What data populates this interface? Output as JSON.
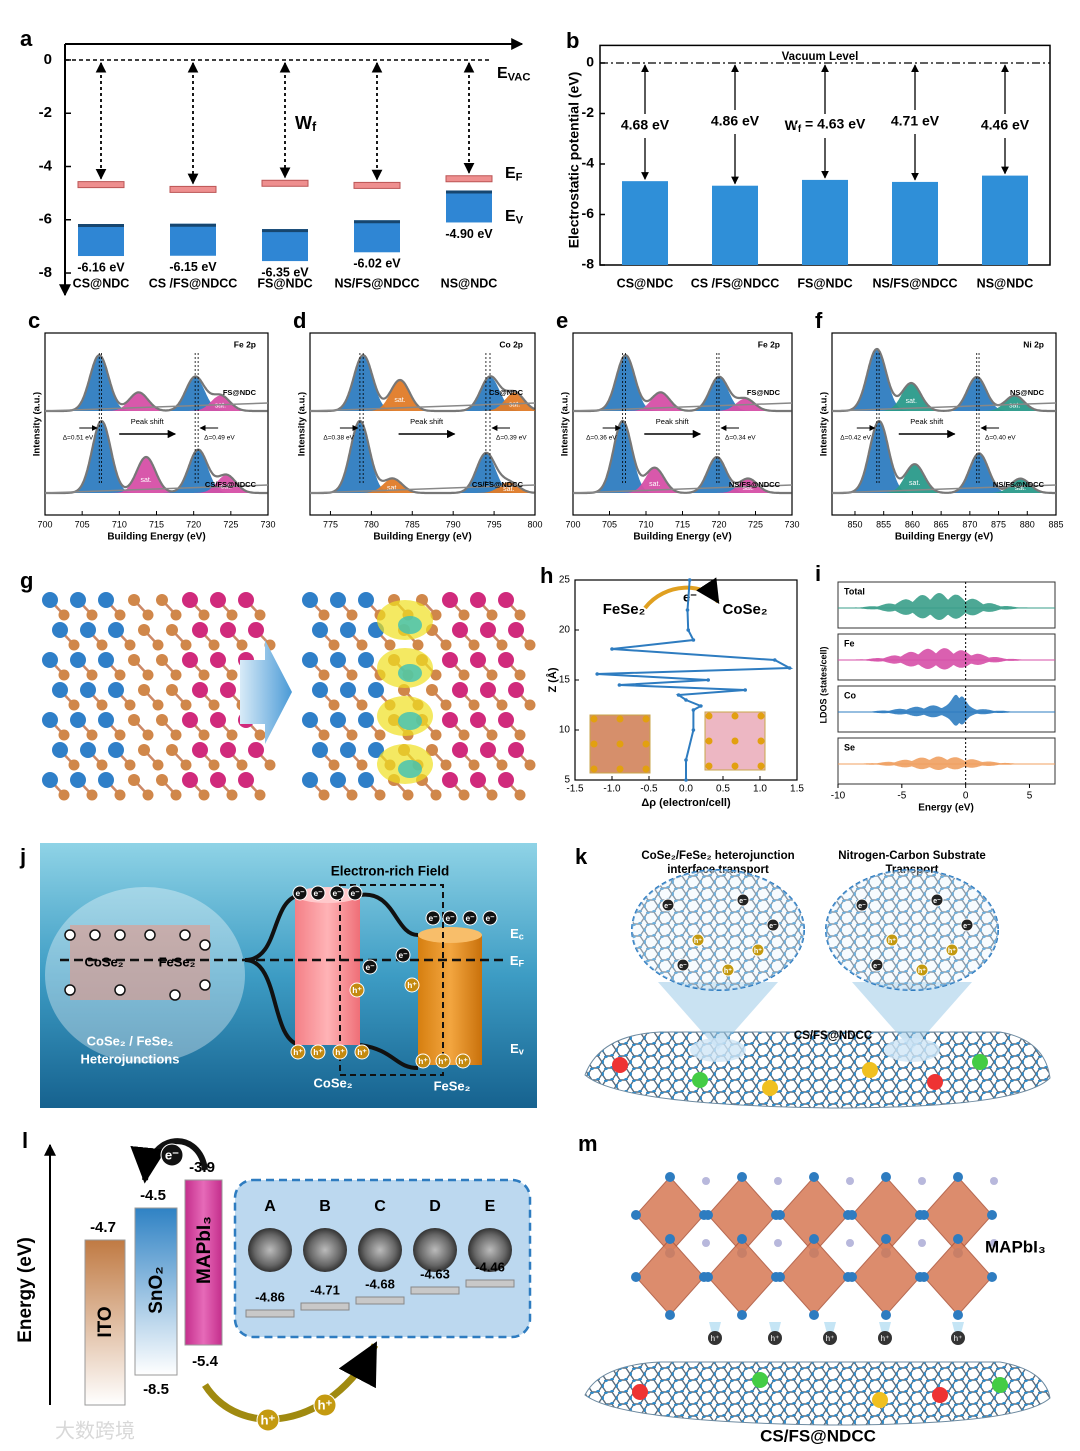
{
  "chart_data": [
    {
      "type": "energy-level",
      "label": "a",
      "categories": [
        "CS@NDC",
        "CS /FS@NDCC",
        "FS@NDC",
        "NS/FS@NDCC",
        "NS@NDC"
      ],
      "fermi": [
        -4.68,
        -4.86,
        -4.63,
        -4.71,
        -4.46
      ],
      "fermi_color": "#ee8f8f",
      "valence": [
        -6.16,
        -6.15,
        -6.35,
        -6.02,
        -4.9
      ],
      "value_labels": [
        "-6.16 eV",
        "-6.15 eV",
        "-6.35 eV",
        "-6.02 eV",
        "-4.90 eV"
      ],
      "valence_color": "#2f86d4",
      "ylim": [
        -8.6,
        0.6
      ],
      "yticks": [
        0,
        -2,
        -4,
        -6,
        -8
      ],
      "vacuum_label": [
        "E",
        {
          "sub": "VAC"
        }
      ],
      "wf_label": [
        "W",
        {
          "sub": "f"
        }
      ],
      "ef_label": [
        "E",
        {
          "sub": "F"
        }
      ],
      "ev_label": [
        "E",
        {
          "sub": "V"
        }
      ]
    },
    {
      "type": "bar",
      "label": "b",
      "title": "Vacuum Level",
      "ylabel": "Electrostatic potential (eV)",
      "categories": [
        "CS@NDC",
        "CS /FS@NDCC",
        "FS@NDC",
        "NS/FS@NDCC",
        "NS@NDC"
      ],
      "values": [
        -4.68,
        -4.86,
        -4.63,
        -4.71,
        -4.46
      ],
      "value_labels": [
        "4.68 eV",
        "4.86 eV",
        [
          "W",
          {
            "sub": "f"
          },
          " = 4.63 eV"
        ],
        "4.71 eV",
        "4.46 eV"
      ],
      "color": "#2f8fd8",
      "ylim": [
        -8,
        0.3
      ],
      "yticks": [
        0,
        -2,
        -4,
        -6,
        -8
      ]
    },
    {
      "type": "xps",
      "label": "c",
      "element": "Fe 2p",
      "xlabel": "Building Energy (eV)",
      "ylabel": "Intensity (a.u.)",
      "xlim": [
        700,
        730
      ],
      "xticks": [
        700,
        705,
        710,
        715,
        720,
        725,
        730
      ],
      "spectra": [
        {
          "name": "FS@NDC",
          "peaks": [
            {
              "x": 707.3,
              "h": 0.9,
              "color": "#2e7cc0"
            },
            {
              "x": 712.6,
              "h": 0.3,
              "color": "#d64fa7"
            },
            {
              "x": 720.2,
              "h": 0.55,
              "color": "#2e7cc0"
            },
            {
              "x": 723.6,
              "h": 0.25,
              "color": "#d64fa7",
              "label": "sat."
            }
          ]
        },
        {
          "name": "CS/FS@NDCC",
          "peaks": [
            {
              "x": 707.6,
              "h": 1,
              "color": "#2e7cc0"
            },
            {
              "x": 713.6,
              "h": 0.5,
              "color": "#d64fa7",
              "label": "sat."
            },
            {
              "x": 720.6,
              "h": 0.6,
              "color": "#2e7cc0"
            },
            {
              "x": 724.4,
              "h": 0.25,
              "color": "#d64fa7",
              "label": "sat."
            }
          ]
        }
      ],
      "shift_left": "Δ=0.51 eV",
      "shift_right": "Δ=0.49 eV",
      "shift_label": "Peak shift"
    },
    {
      "type": "xps",
      "label": "d",
      "element": "Co 2p",
      "xlabel": "Building Energy (eV)",
      "ylabel": "Intensity (a.u.)",
      "xlim": [
        772.5,
        800
      ],
      "xticks": [
        775,
        780,
        785,
        790,
        795,
        800
      ],
      "spectra": [
        {
          "name": "CS@NDC",
          "peaks": [
            {
              "x": 779,
              "h": 0.9,
              "color": "#2e7cc0"
            },
            {
              "x": 783.5,
              "h": 0.5,
              "color": "#e07b28",
              "label": "sat."
            },
            {
              "x": 794.5,
              "h": 0.55,
              "color": "#2e7cc0"
            },
            {
              "x": 797.5,
              "h": 0.3,
              "color": "#e07b28",
              "label": "sat."
            }
          ]
        },
        {
          "name": "CS/FS@NDCC",
          "peaks": [
            {
              "x": 778.6,
              "h": 1,
              "color": "#2e7cc0"
            },
            {
              "x": 782.6,
              "h": 0.2,
              "color": "#e07b28",
              "label": "sat."
            },
            {
              "x": 794,
              "h": 0.55,
              "color": "#2e7cc0"
            },
            {
              "x": 796.8,
              "h": 0.15,
              "color": "#e07b28",
              "label": "sat."
            }
          ]
        }
      ],
      "shift_left": "Δ=0.38 eV",
      "shift_right": "Δ=0.39 eV",
      "shift_label": "Peak shift"
    },
    {
      "type": "xps",
      "label": "e",
      "element": "Fe 2p",
      "xlabel": "Building Energy (eV)",
      "ylabel": "Intensity (a.u.)",
      "xlim": [
        700,
        730
      ],
      "xticks": [
        700,
        705,
        710,
        715,
        720,
        725,
        730
      ],
      "spectra": [
        {
          "name": "FS@NDC",
          "peaks": [
            {
              "x": 707.2,
              "h": 0.9,
              "color": "#2e7cc0"
            },
            {
              "x": 712,
              "h": 0.3,
              "color": "#d64fa7"
            },
            {
              "x": 720,
              "h": 0.55,
              "color": "#2e7cc0"
            },
            {
              "x": 723.6,
              "h": 0.2,
              "color": "#d64fa7"
            }
          ]
        },
        {
          "name": "NS/FS@NDCC",
          "peaks": [
            {
              "x": 706.8,
              "h": 1,
              "color": "#2e7cc0"
            },
            {
              "x": 711.2,
              "h": 0.35,
              "color": "#d64fa7",
              "label": "sat."
            },
            {
              "x": 719.7,
              "h": 0.5,
              "color": "#2e7cc0"
            },
            {
              "x": 724,
              "h": 0.2,
              "color": "#d64fa7",
              "label": "sat."
            }
          ]
        }
      ],
      "shift_left": "Δ=0.36 eV",
      "shift_right": "Δ=0.34 eV",
      "shift_label": "Peak shift"
    },
    {
      "type": "xps",
      "label": "f",
      "element": "Ni 2p",
      "xlabel": "Building Energy (eV)",
      "ylabel": "Intensity (a.u.)",
      "xlim": [
        846,
        885
      ],
      "xticks": [
        850,
        855,
        860,
        865,
        870,
        875,
        880,
        885
      ],
      "spectra": [
        {
          "name": "NS@NDC",
          "peaks": [
            {
              "x": 853.8,
              "h": 1,
              "color": "#2e7cc0"
            },
            {
              "x": 859.8,
              "h": 0.45,
              "color": "#2a9a8a",
              "label": "sat."
            },
            {
              "x": 871.2,
              "h": 0.55,
              "color": "#2e7cc0"
            },
            {
              "x": 877.8,
              "h": 0.25,
              "color": "#2a9a8a",
              "label": "sat."
            }
          ]
        },
        {
          "name": "NS/FS@NDCC",
          "peaks": [
            {
              "x": 854.2,
              "h": 1,
              "color": "#2e7cc0"
            },
            {
              "x": 860.4,
              "h": 0.4,
              "color": "#2a9a8a",
              "label": "sat."
            },
            {
              "x": 871.6,
              "h": 0.55,
              "color": "#2e7cc0"
            },
            {
              "x": 878.8,
              "h": 0.2,
              "color": "#2a9a8a",
              "label": "sat."
            }
          ]
        }
      ],
      "shift_left": "Δ=0.42 eV",
      "shift_right": "Δ=0.40 eV",
      "shift_label": "Peak shift"
    },
    {
      "type": "line",
      "label": "h",
      "xlabel": "Δρ (electron/cell)",
      "ylabel": "Z (Å)",
      "left_text": "FeSe₂",
      "right_text": "CoSe₂",
      "electron": "e⁻",
      "color": "#2e7cc0",
      "xlim": [
        -1.5,
        1.5
      ],
      "xticks": [
        -1.5,
        {
          "value": -1,
          "label": "-1.0"
        },
        -0.5,
        {
          "value": 0,
          "label": "0.0"
        },
        0.5,
        {
          "value": 1,
          "label": "1.0"
        },
        1.5
      ],
      "ylim": [
        5,
        25
      ],
      "yticks": [
        5,
        10,
        15,
        20,
        25
      ],
      "z": [
        25,
        22,
        20,
        19,
        18.1,
        17,
        16.2,
        15.6,
        15,
        14.5,
        14,
        13.5,
        13,
        12.4,
        12,
        10,
        7,
        5
      ],
      "values": [
        0.05,
        0.02,
        0.03,
        0.1,
        -1.0,
        1.2,
        1.4,
        -1.2,
        0.3,
        -0.9,
        0.8,
        -0.1,
        0.0,
        0.2,
        0.1,
        0.1,
        0.0,
        0.0
      ]
    },
    {
      "type": "ldos",
      "label": "i",
      "xlabel": "Energy (eV)",
      "ylabel": "LDOS (states/cell)",
      "xlim": [
        -10,
        7
      ],
      "xticks": [
        -10,
        -5,
        0,
        5
      ],
      "series": [
        {
          "name": "Total",
          "color": "#3a9e8a"
        },
        {
          "name": "Fe",
          "color": "#d64fa7"
        },
        {
          "name": "Co",
          "color": "#2e7cc0"
        },
        {
          "name": "Se",
          "color": "#f0a060"
        }
      ]
    }
  ],
  "panels": {
    "g": {
      "label": "g"
    },
    "j": {
      "label": "j",
      "field": "Electron-rich Field",
      "left_material": "CoSe₂",
      "right_material": "FeSe₂",
      "caption": [
        "CoSe₂ / FeSe₂",
        "Heterojunctions"
      ],
      "ec": [
        "E",
        {
          "sub": "c"
        }
      ],
      "ef": [
        "E",
        {
          "sub": "F"
        }
      ],
      "ev": [
        "E",
        {
          "sub": "v"
        }
      ],
      "cylinder_left": "CoSe₂",
      "cylinder_right": "FeSe₂",
      "electron": "e⁻",
      "hole": "h⁺"
    },
    "k": {
      "label": "k",
      "left_title": [
        "CoSe₂/FeSe₂ heterojunction",
        "interface transport"
      ],
      "right_title": [
        "Nitrogen-Carbon Substrate",
        "Transport"
      ],
      "substrate": "CS/FS@NDCC",
      "electron": "e⁻",
      "hole": "h⁺"
    },
    "l": {
      "label": "l",
      "ylabel": "Energy (eV)",
      "layers": [
        {
          "name": "ITO",
          "top": "-4.7"
        },
        {
          "name": "SnO₂",
          "top": "-4.5",
          "bottom": "-8.5"
        },
        {
          "name": "MAPbI₃",
          "top": "-3.9",
          "bottom": "-5.4"
        }
      ],
      "samples": [
        {
          "name": "A",
          "level": "-4.86"
        },
        {
          "name": "B",
          "level": "-4.71"
        },
        {
          "name": "C",
          "level": "-4.68"
        },
        {
          "name": "D",
          "level": "-4.63"
        },
        {
          "name": "E",
          "level": "-4.46"
        }
      ],
      "electron": "e⁻",
      "hole": "h⁺"
    },
    "m": {
      "label": "m",
      "perovskite": "MAPbI₃",
      "substrate": "CS/FS@NDCC",
      "hole": "h⁺"
    },
    "watermark": "大数跨境"
  }
}
